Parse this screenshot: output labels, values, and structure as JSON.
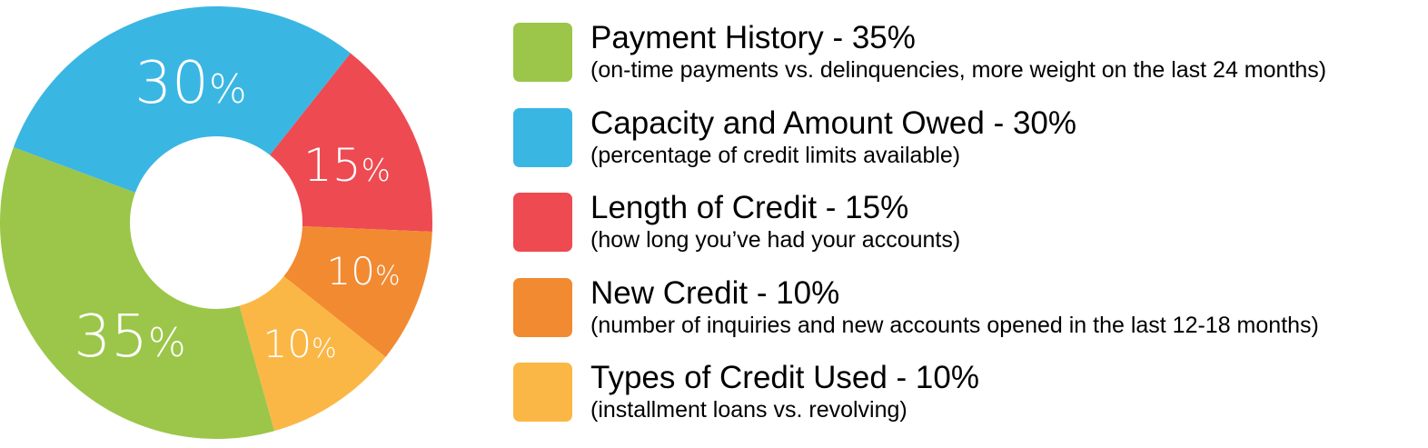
{
  "chart_data": {
    "type": "pie",
    "donut": true,
    "categories": [
      "Length of Credit",
      "New Credit",
      "Types of Credit Used",
      "Payment History",
      "Capacity and Amount Owed"
    ],
    "values": [
      15,
      10,
      10,
      35,
      30
    ],
    "colors": [
      "#EE4A52",
      "#F18A31",
      "#FBB746",
      "#9BC649",
      "#3AB6E3"
    ],
    "slice_labels": [
      "15%",
      "10%",
      "10%",
      "35%",
      "30%"
    ],
    "legend_placement": "right"
  },
  "legend": [
    {
      "title": "Payment History - 35%",
      "desc": "(on-time payments vs. delinquencies, more weight on the last 24 months)",
      "color": "#9BC649"
    },
    {
      "title": "Capacity and Amount Owed - 30%",
      "desc": "(percentage of credit limits available)",
      "color": "#3AB6E3"
    },
    {
      "title": "Length of Credit - 15%",
      "desc": "(how long you’ve had your accounts)",
      "color": "#EE4A52"
    },
    {
      "title": "New Credit - 10%",
      "desc": "(number of inquiries and new accounts opened in the last 12-18 months)",
      "color": "#F18A31"
    },
    {
      "title": "Types of Credit Used - 10%",
      "desc": "(installment loans vs. revolving)",
      "color": "#FBB746"
    }
  ]
}
